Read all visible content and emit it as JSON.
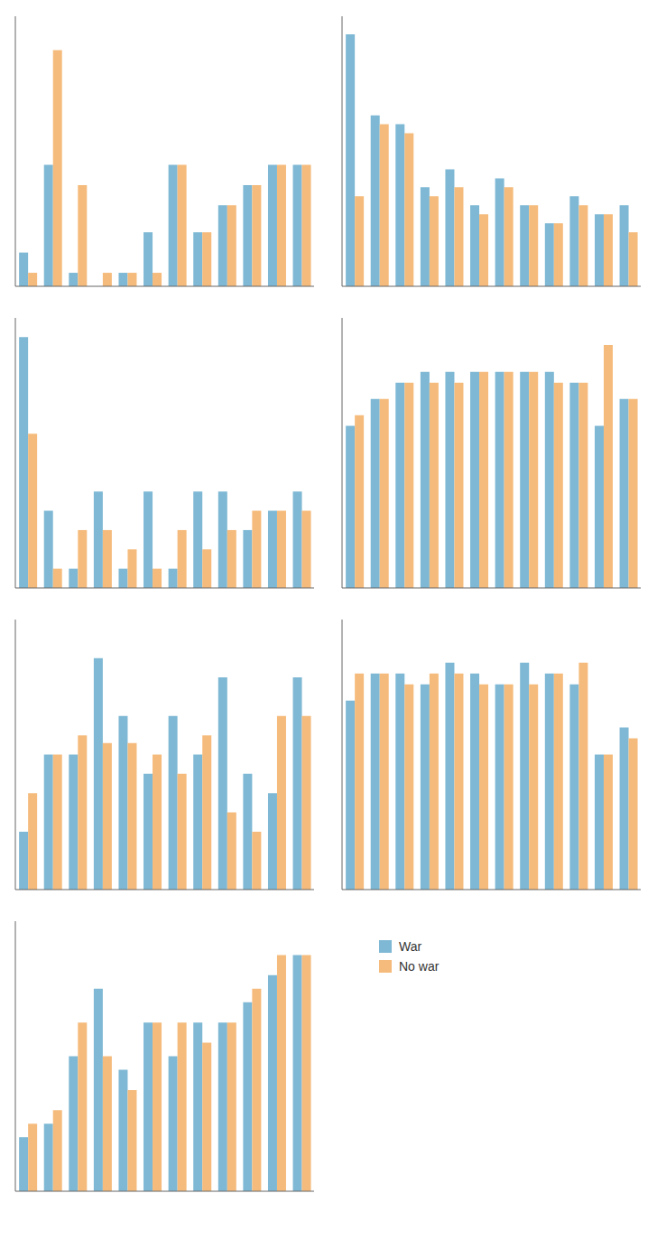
{
  "chart_data": [
    {
      "type": "bar",
      "categories": [
        null,
        null,
        null,
        null,
        null,
        null,
        null,
        null,
        null,
        null,
        null,
        null
      ],
      "series": [
        {
          "name": "War",
          "color": "#7eb8d4",
          "values": [
            0.5,
            1.8,
            0.2,
            0.0,
            0.2,
            0.8,
            1.8,
            0.8,
            1.2,
            1.5,
            1.8,
            1.8
          ]
        },
        {
          "name": "No war",
          "color": "#f5bb7c",
          "values": [
            0.2,
            3.5,
            1.5,
            0.2,
            0.2,
            0.2,
            1.8,
            0.8,
            1.2,
            1.5,
            1.8,
            1.8
          ]
        }
      ],
      "ylim": [
        0,
        4
      ],
      "tick_labels": false
    },
    {
      "type": "bar",
      "categories": [
        null,
        null,
        null,
        null,
        null,
        null,
        null,
        null,
        null,
        null,
        null,
        null
      ],
      "series": [
        {
          "name": "War",
          "color": "#7eb8d4",
          "values": [
            14.0,
            9.5,
            9.0,
            5.5,
            6.5,
            4.5,
            6.0,
            4.5,
            3.5,
            5.0,
            4.0,
            4.5
          ]
        },
        {
          "name": "No war",
          "color": "#f5bb7c",
          "values": [
            5.0,
            9.0,
            8.5,
            5.0,
            5.5,
            4.0,
            5.5,
            4.5,
            3.5,
            4.5,
            4.0,
            3.0
          ]
        }
      ],
      "ylim": [
        0,
        15
      ],
      "tick_labels": false
    },
    {
      "type": "bar",
      "categories": [
        null,
        null,
        null,
        null,
        null,
        null,
        null,
        null,
        null,
        null,
        null,
        null
      ],
      "series": [
        {
          "name": "War",
          "color": "#7eb8d4",
          "values": [
            6.5,
            2.0,
            0.5,
            2.5,
            0.5,
            2.5,
            0.5,
            2.5,
            2.5,
            1.5,
            2.0,
            2.5
          ]
        },
        {
          "name": "No war",
          "color": "#f5bb7c",
          "values": [
            4.0,
            0.5,
            1.5,
            1.5,
            1.0,
            0.5,
            1.5,
            1.0,
            1.5,
            2.0,
            2.0,
            2.0
          ]
        }
      ],
      "ylim": [
        0,
        7
      ],
      "tick_labels": false
    },
    {
      "type": "bar",
      "categories": [
        null,
        null,
        null,
        null,
        null,
        null,
        null,
        null,
        null,
        null,
        null,
        null
      ],
      "series": [
        {
          "name": "War",
          "color": "#7eb8d4",
          "values": [
            3.0,
            3.5,
            3.8,
            4.0,
            4.0,
            4.0,
            4.0,
            4.0,
            4.0,
            3.8,
            3.0,
            3.5
          ]
        },
        {
          "name": "No war",
          "color": "#f5bb7c",
          "values": [
            3.2,
            3.5,
            3.8,
            3.8,
            3.8,
            4.0,
            4.0,
            4.0,
            3.8,
            3.8,
            4.5,
            3.5
          ]
        }
      ],
      "ylim": [
        0,
        5
      ],
      "tick_labels": false
    },
    {
      "type": "bar",
      "categories": [
        null,
        null,
        null,
        null,
        null,
        null,
        null,
        null,
        null,
        null,
        null,
        null
      ],
      "series": [
        {
          "name": "War",
          "color": "#7eb8d4",
          "values": [
            1.5,
            3.5,
            3.5,
            6.0,
            4.5,
            3.0,
            4.5,
            3.5,
            5.5,
            3.0,
            2.5,
            5.5
          ]
        },
        {
          "name": "No war",
          "color": "#f5bb7c",
          "values": [
            2.5,
            3.5,
            4.0,
            3.8,
            3.8,
            3.5,
            3.0,
            4.0,
            2.0,
            1.5,
            4.5,
            4.5
          ]
        }
      ],
      "ylim": [
        0,
        7
      ],
      "tick_labels": false
    },
    {
      "type": "bar",
      "categories": [
        null,
        null,
        null,
        null,
        null,
        null,
        null,
        null,
        null,
        null,
        null,
        null
      ],
      "series": [
        {
          "name": "War",
          "color": "#7eb8d4",
          "values": [
            3.5,
            4.0,
            4.0,
            3.8,
            4.2,
            4.0,
            3.8,
            4.2,
            4.0,
            3.8,
            2.5,
            3.0
          ]
        },
        {
          "name": "No war",
          "color": "#f5bb7c",
          "values": [
            4.0,
            4.0,
            3.8,
            4.0,
            4.0,
            3.8,
            3.8,
            3.8,
            4.0,
            4.2,
            2.5,
            2.8
          ]
        }
      ],
      "ylim": [
        0,
        5
      ],
      "tick_labels": false
    },
    {
      "type": "bar",
      "categories": [
        null,
        null,
        null,
        null,
        null,
        null,
        null,
        null,
        null,
        null,
        null,
        null
      ],
      "series": [
        {
          "name": "War",
          "color": "#7eb8d4",
          "values": [
            0.8,
            1.0,
            2.0,
            3.0,
            1.8,
            2.5,
            2.0,
            2.5,
            2.5,
            2.8,
            3.2,
            3.5
          ]
        },
        {
          "name": "No war",
          "color": "#f5bb7c",
          "values": [
            1.0,
            1.2,
            2.5,
            2.0,
            1.5,
            2.5,
            2.5,
            2.2,
            2.5,
            3.0,
            3.5,
            3.5
          ]
        }
      ],
      "ylim": [
        0,
        4
      ],
      "tick_labels": false
    }
  ]
}
